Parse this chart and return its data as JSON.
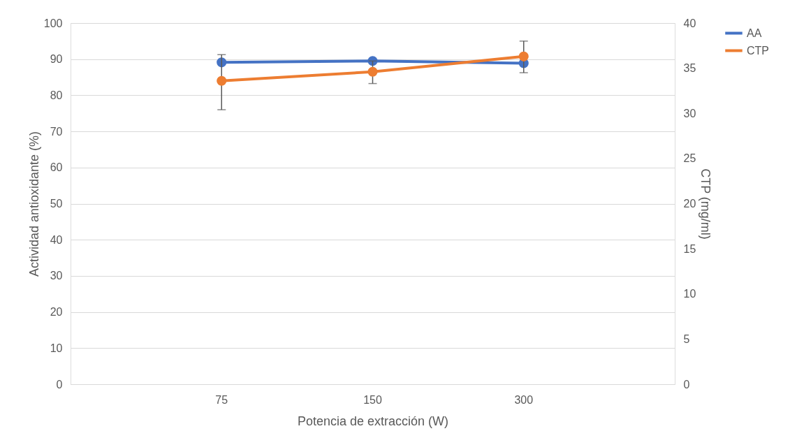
{
  "chart_data": {
    "type": "line",
    "xlabel": "Potencia de extracción (W)",
    "ylabel": "Actividad antioxidante (%)",
    "y2label": "CTP (mg/ml)",
    "categories": [
      "75",
      "150",
      "300"
    ],
    "series": [
      {
        "name": "AA",
        "color": "#4472c4",
        "values": [
          89.1,
          89.5,
          88.9
        ]
      },
      {
        "name": "CTP",
        "color": "#ed7d31",
        "values": [
          33.6,
          34.6,
          36.3
        ],
        "axis": "y2",
        "errors": [
          [
            30.4,
            36.5
          ],
          [
            33.3,
            35.8
          ],
          [
            34.5,
            38.0
          ]
        ]
      }
    ],
    "ylim": [
      0,
      100
    ],
    "yticks": [
      0,
      10,
      20,
      30,
      40,
      50,
      60,
      70,
      80,
      90,
      100
    ],
    "y2lim": [
      0,
      40
    ],
    "y2ticks": [
      0,
      5,
      10,
      15,
      20,
      25,
      30,
      35,
      40
    ],
    "grid": "y",
    "legend": "right",
    "marker": "circle",
    "line_style": "solid"
  }
}
